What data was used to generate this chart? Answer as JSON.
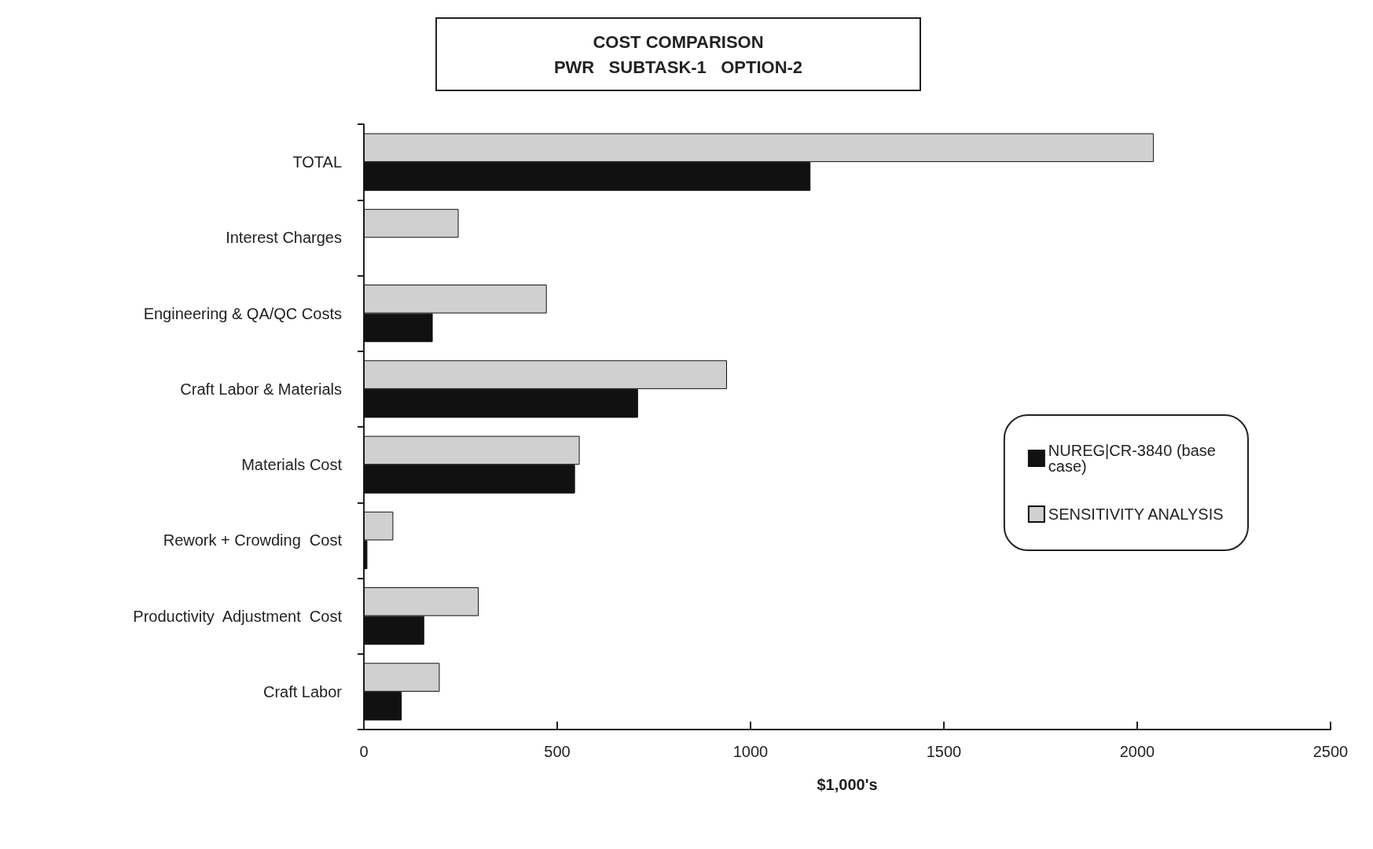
{
  "chart_data": {
    "type": "bar",
    "orientation": "horizontal",
    "title": "COST COMPARISON\nPWR   SUBTASK-1   OPTION-2",
    "xlabel": "$1,000's",
    "categories": [
      "TOTAL",
      "Interest Charges",
      "Engineering & QA/QC Costs",
      "Craft Labor & Materials",
      "Materials Cost",
      "Rework + Crowding  Cost",
      "Productivity  Adjustment  Cost",
      "Craft Labor"
    ],
    "series": [
      {
        "name": "NUREG|CR-3840 (base case)",
        "color": "#111111",
        "values": [
          1155,
          null,
          178,
          709,
          546,
          9,
          156,
          98
        ]
      },
      {
        "name": "SENSITIVITY ANALYSIS",
        "color": "#d0d0d0",
        "values": [
          2043,
          245,
          473,
          939,
          558,
          76,
          297,
          196
        ]
      }
    ],
    "xlim": [
      0,
      2500
    ],
    "xticks": [
      0,
      500,
      1000,
      1500,
      2000,
      2500
    ],
    "grid": false,
    "legend": "right"
  }
}
